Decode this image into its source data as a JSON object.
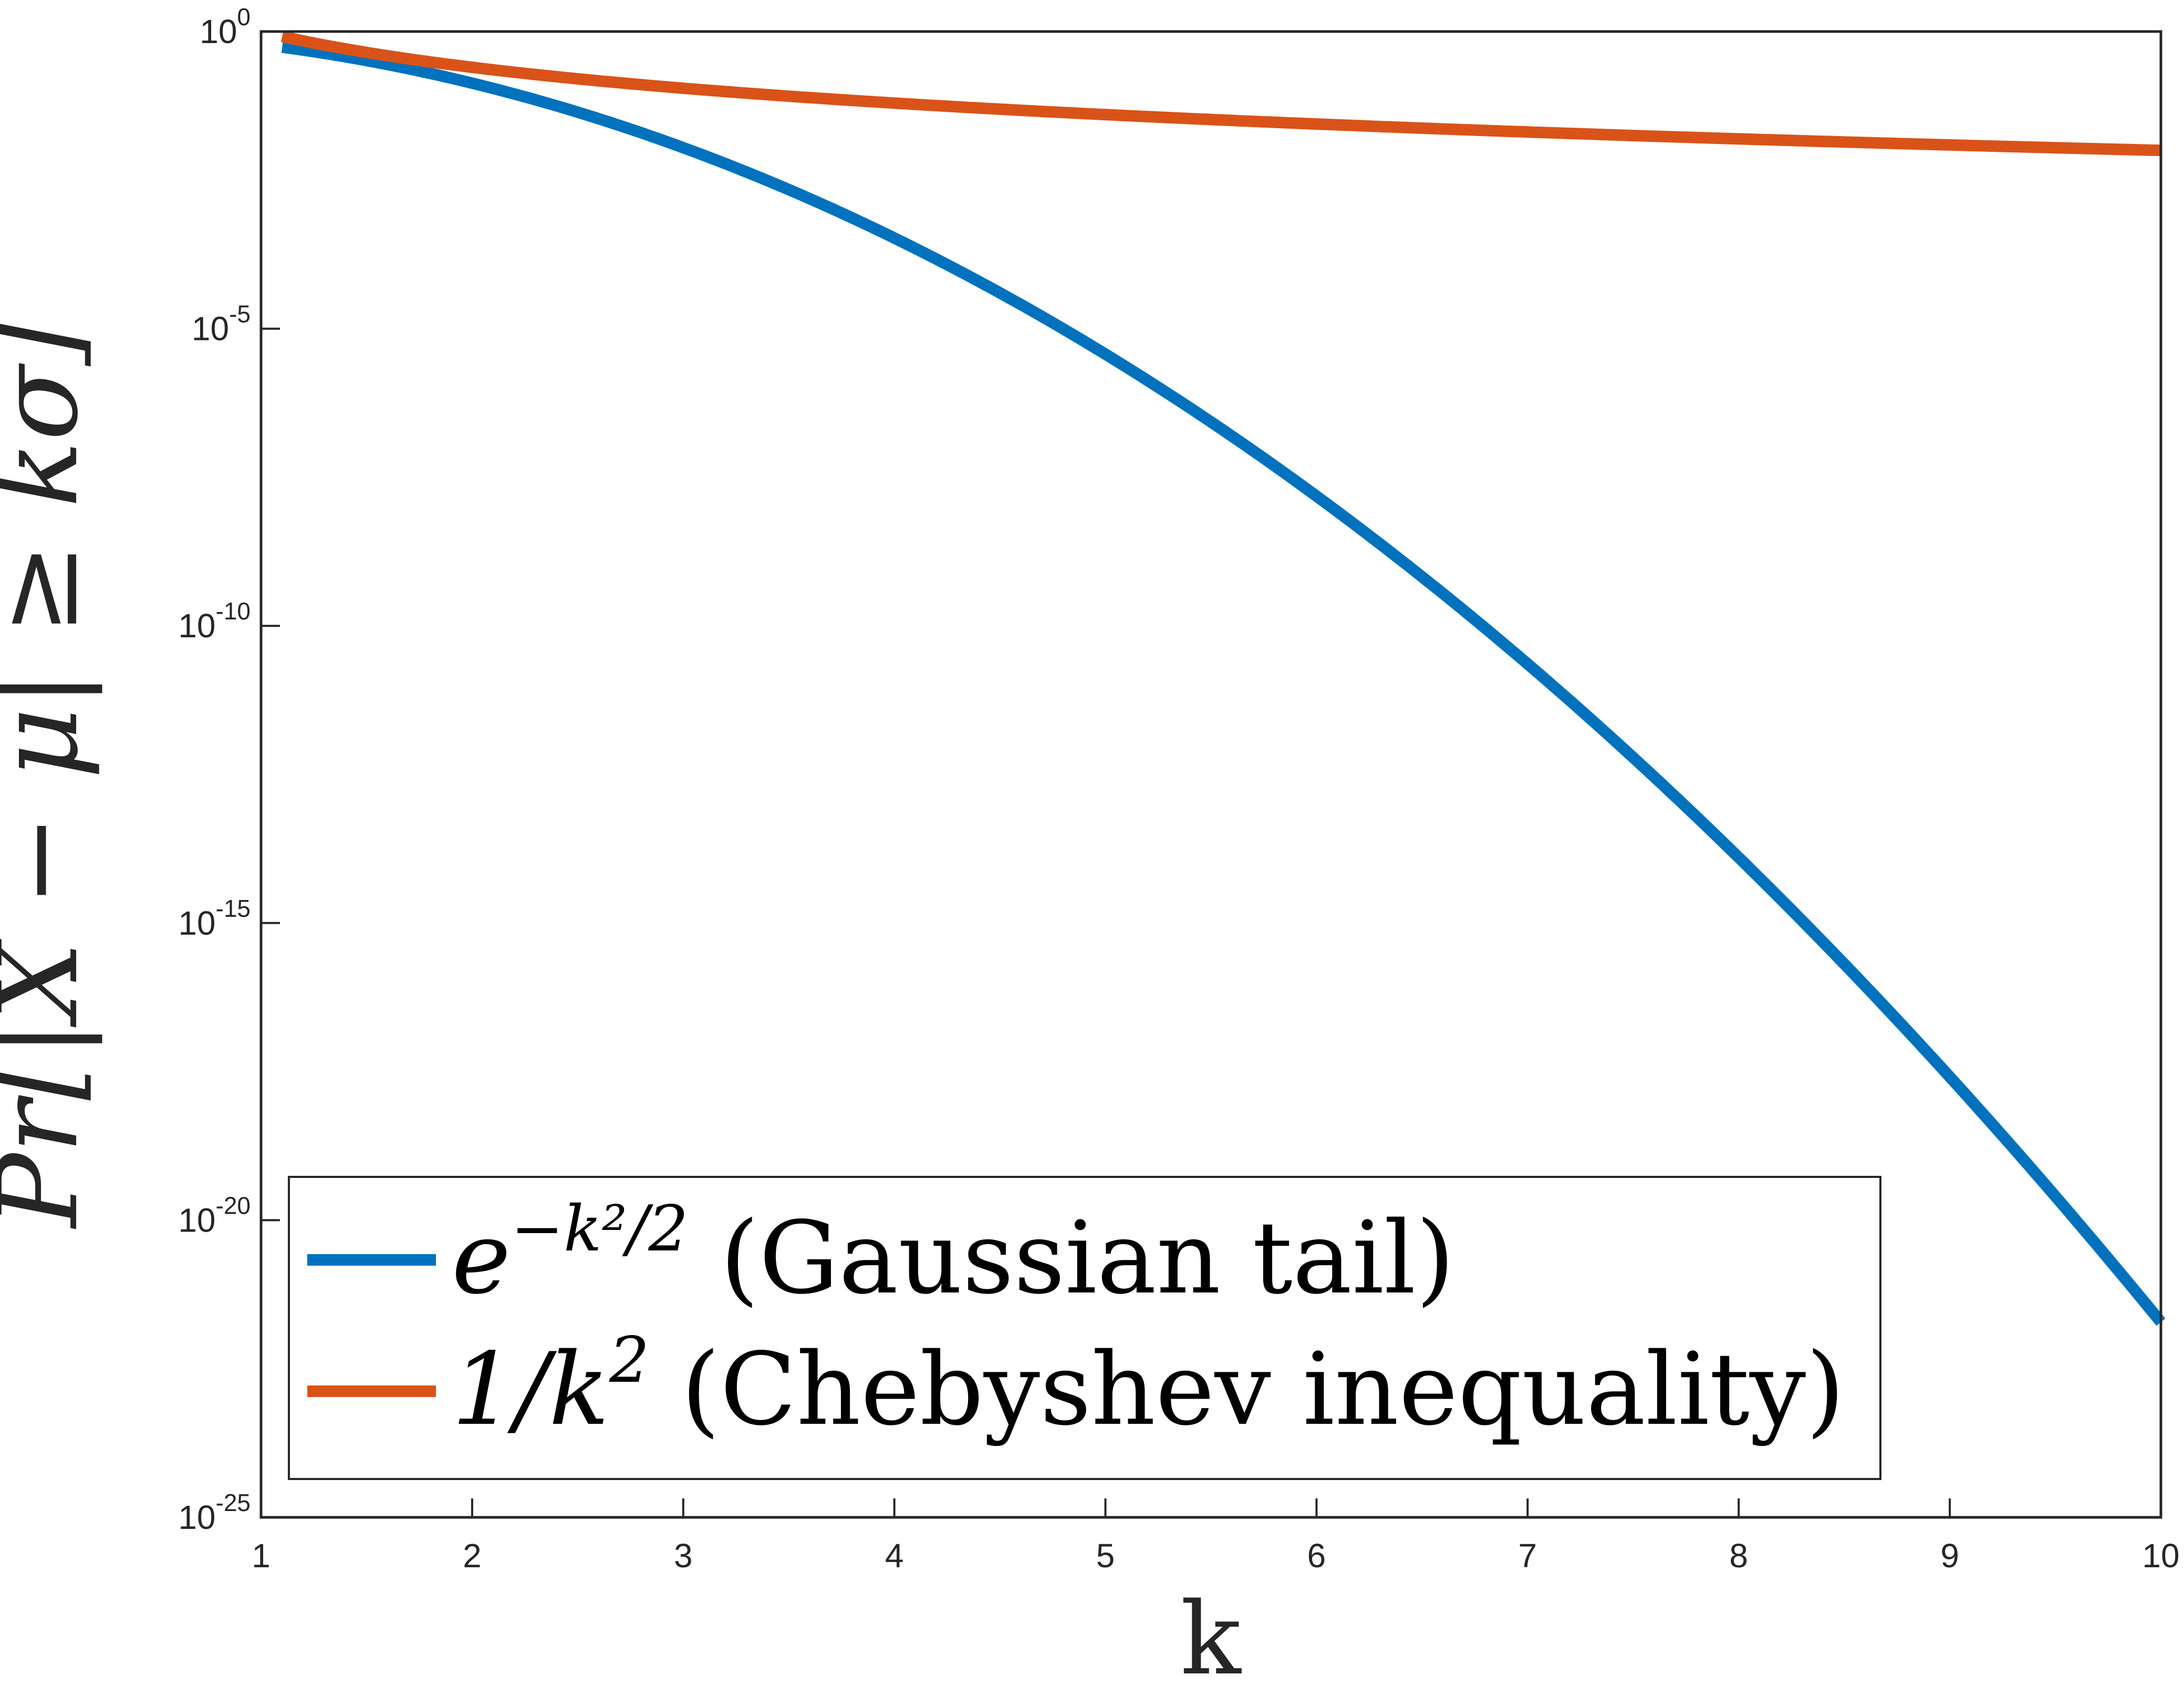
{
  "colors": {
    "gaussian": "#0072BD",
    "chebyshev": "#D95319",
    "axis": "#262626",
    "background": "#FFFFFF"
  },
  "chart_data": {
    "type": "line",
    "title": "",
    "xlabel": "k",
    "ylabel": "Pr[|X − μ| ≥ kσ]",
    "xlim": [
      1,
      10
    ],
    "ylim": [
      1e-25,
      1
    ],
    "yscale": "log",
    "grid": false,
    "legend_position": "bottom-left",
    "x_ticks": [
      "1",
      "2",
      "3",
      "4",
      "5",
      "6",
      "7",
      "8",
      "9",
      "10"
    ],
    "y_ticks": [
      {
        "base": "10",
        "exp": "0"
      },
      {
        "base": "10",
        "exp": "-5"
      },
      {
        "base": "10",
        "exp": "-10"
      },
      {
        "base": "10",
        "exp": "-15"
      },
      {
        "base": "10",
        "exp": "-20"
      },
      {
        "base": "10",
        "exp": "-25"
      }
    ],
    "x_range": [
      1.1,
      10
    ],
    "series": [
      {
        "name": "e^{-k^2/2} (Gaussian tail)",
        "legend": {
          "base": "e",
          "exp": "−k²/2",
          "text": " (Gaussian tail)"
        },
        "formula": "exp(-k^2/2)",
        "color": "#0072BD",
        "x": [
          1.1,
          1.5,
          2,
          2.5,
          3,
          3.5,
          4,
          4.5,
          5,
          5.5,
          6,
          6.5,
          7,
          7.5,
          8,
          8.5,
          9,
          9.5,
          10
        ],
        "y": [
          0.546,
          0.325,
          0.135,
          0.0439,
          0.0111,
          0.00219,
          0.000335,
          4e-05,
          3.73e-06,
          2.7e-07,
          1.52e-08,
          6.7e-10,
          2.29e-11,
          6.1e-13,
          1.27e-14,
          2e-16,
          2.58e-18,
          2.5e-20,
          1.93e-22
        ]
      },
      {
        "name": "1/k^2 (Chebyshev inequality)",
        "legend": {
          "base": "1/k",
          "exp": "2",
          "text": " (Chebyshev inequality)"
        },
        "formula": "1/k^2",
        "color": "#D95319",
        "x": [
          1.1,
          1.5,
          2,
          2.5,
          3,
          3.5,
          4,
          4.5,
          5,
          5.5,
          6,
          6.5,
          7,
          7.5,
          8,
          8.5,
          9,
          9.5,
          10
        ],
        "y": [
          0.826,
          0.444,
          0.25,
          0.16,
          0.111,
          0.0816,
          0.0625,
          0.0494,
          0.04,
          0.0331,
          0.0278,
          0.0237,
          0.0204,
          0.0178,
          0.0156,
          0.0138,
          0.0123,
          0.0111,
          0.01
        ]
      }
    ]
  }
}
